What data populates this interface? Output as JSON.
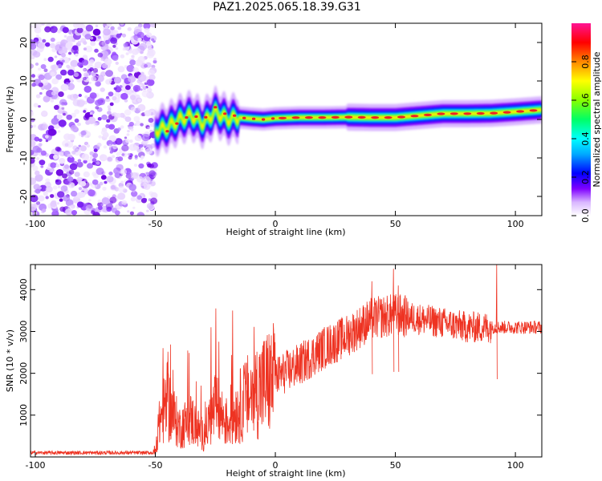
{
  "title": "PAZ1.2025.065.18.39.G31",
  "colors": {
    "trace": "#ee3322",
    "noise": "#9a4dff"
  },
  "chart_data": [
    {
      "type": "heatmap",
      "xlabel": "Height of straight line (km)",
      "ylabel": "Frequency (Hz)",
      "xlim": [
        -102,
        111
      ],
      "ylim": [
        -25,
        25
      ],
      "xticks": [
        -100,
        -50,
        0,
        50,
        100
      ],
      "yticks": [
        -20,
        -10,
        0,
        10,
        20
      ],
      "colorbar": {
        "label": "Normalized spectral amplitude",
        "range": [
          0,
          1
        ],
        "ticks": [
          "0.0",
          "0.2",
          "0.4",
          "0.6",
          "0.8"
        ],
        "tick_values": [
          0,
          0.2,
          0.4,
          0.6,
          0.8
        ]
      },
      "ridge": {
        "x": [
          -50,
          -45,
          -40,
          -35,
          -30,
          -25,
          -20,
          -15,
          -10,
          -5,
          0,
          10,
          20,
          30,
          40,
          50,
          60,
          70,
          80,
          90,
          100,
          111
        ],
        "freq": [
          -3,
          -2,
          0,
          1,
          -1,
          2,
          0,
          0.5,
          0.2,
          0,
          0.3,
          0.5,
          0.5,
          0.6,
          0.5,
          0.5,
          1,
          1.5,
          1.5,
          1.6,
          2,
          2.5
        ]
      }
    },
    {
      "type": "line",
      "xlabel": "Height of straight line (km)",
      "ylabel": "SNR (10 * v/v)",
      "xlim": [
        -102,
        111
      ],
      "ylim": [
        0,
        4600
      ],
      "xticks": [
        -100,
        -50,
        0,
        50,
        100
      ],
      "yticks": [
        1000,
        2000,
        3000,
        4000
      ],
      "envelope": {
        "x": [
          -102,
          -51,
          -50,
          -48,
          -45,
          -40,
          -35,
          -30,
          -25,
          -20,
          -15,
          -10,
          -5,
          0,
          10,
          20,
          30,
          40,
          50,
          60,
          70,
          80,
          90,
          93,
          100,
          111
        ],
        "y": [
          100,
          100,
          200,
          900,
          1300,
          700,
          900,
          500,
          1200,
          800,
          1200,
          1500,
          1700,
          1900,
          2200,
          2600,
          2900,
          3300,
          3400,
          3300,
          3200,
          3100,
          3100,
          3100,
          3100,
          3100
        ]
      },
      "spikes": {
        "x": [
          -47,
          -27,
          -25,
          -18,
          40,
          49,
          51,
          92
        ],
        "y": [
          2600,
          3100,
          3550,
          3500,
          4200,
          4500,
          4100,
          4600
        ]
      }
    }
  ]
}
